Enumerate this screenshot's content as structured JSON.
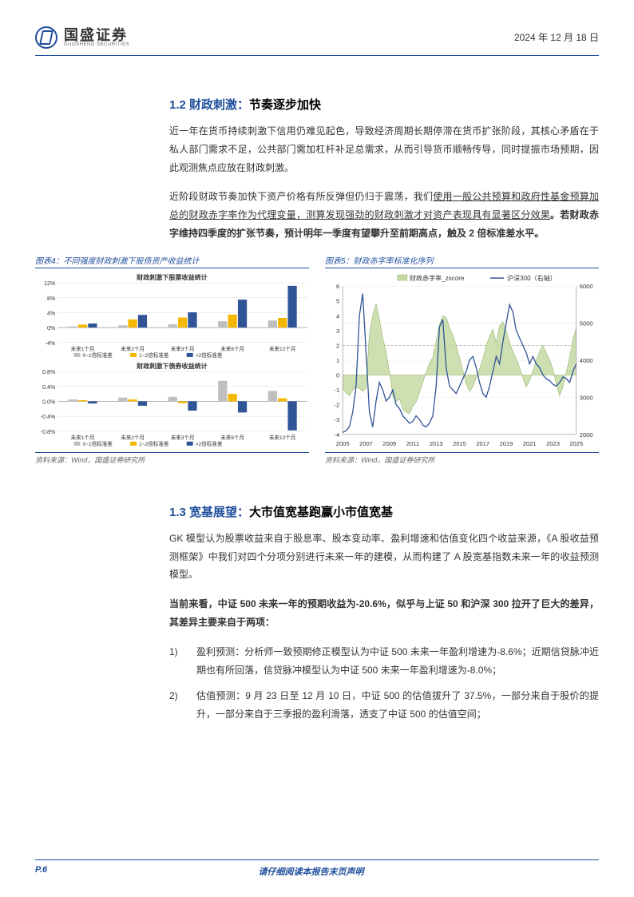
{
  "header": {
    "logo_cn": "国盛证券",
    "logo_en": "GUOSHENG SECURITIES",
    "date": "2024 年 12 月 18 日"
  },
  "section_1_2": {
    "heading_num": "1.2",
    "heading_colored": "财政刺激：",
    "heading_black": "节奏逐步加快",
    "para1": "近一年在货币持续刺激下信用仍难见起色，导致经济周期长期停滞在货币扩张阶段，其核心矛盾在于私人部门需求不足，公共部门需加杠杆补足总需求，从而引导货币顺畅传导，同时提振市场预期，因此观测焦点应放在财政刺激。",
    "para2_a": "近阶段财政节奏加快下资产价格有所反弹但仍归于震荡，我们",
    "para2_u": "使用一般公共预算和政府性基金预算加总的财政赤字率作为代理变量，测算发现强劲的财政刺激才对资产表现具有显著区分效果",
    "para2_b": "。若财政赤字维持四季度的扩张节奏，预计明年一季度有望攀升至前期高点，触及 2 倍标准差水平。"
  },
  "chart4": {
    "title": "图表4：不同强度财政刺激下股债资产收益统计",
    "source": "资料来源：Wind，国盛证券研究所",
    "sub1_title": "财政刺激下股票收益统计",
    "sub2_title": "财政刺激下债券收益统计",
    "categories": [
      "未来1个月",
      "未来2个月",
      "未来3个月",
      "未来6个月",
      "未来12个月"
    ],
    "legend": [
      "0~1倍标准差",
      "1~2倍标准差",
      ">2倍标准差"
    ],
    "colors": [
      "#bfbfbf",
      "#f5b800",
      "#2f5597"
    ],
    "sub1": {
      "yticks": [
        -4,
        0,
        4,
        8,
        12
      ],
      "ylim": [
        -4,
        12
      ],
      "data": [
        [
          0.3,
          0.8,
          1.1
        ],
        [
          0.6,
          2.2,
          3.4
        ],
        [
          0.9,
          2.7,
          4.1
        ],
        [
          1.7,
          3.5,
          7.5
        ],
        [
          1.9,
          2.6,
          11.2
        ]
      ]
    },
    "sub2": {
      "yticks": [
        -0.8,
        -0.4,
        0.0,
        0.4,
        0.8
      ],
      "yticks_labels": [
        "-0.8%",
        "-0.4%",
        "0.0%",
        "0.4%",
        "0.8%"
      ],
      "ylim": [
        -0.8,
        0.8
      ],
      "data": [
        [
          0.05,
          0.03,
          -0.06
        ],
        [
          0.1,
          0.05,
          -0.12
        ],
        [
          0.12,
          -0.05,
          -0.25
        ],
        [
          0.55,
          0.2,
          -0.3
        ],
        [
          0.28,
          0.08,
          -0.78
        ]
      ]
    }
  },
  "chart5": {
    "title": "图表5：财政赤字率标准化序列",
    "source": "资料来源：Wind，国盛证券研究所",
    "legend": [
      "财政赤字率_zscore",
      "沪深300（右轴）"
    ],
    "colors": {
      "area": "#c5d9a5",
      "area_stroke": "#8aab5b",
      "line": "#2f5597"
    },
    "left_ticks": [
      -4,
      -3,
      -2,
      -1,
      0,
      1,
      2,
      3,
      4,
      5,
      6
    ],
    "right_ticks": [
      2000,
      3000,
      4000,
      5000,
      6000
    ],
    "x_ticks": [
      2005,
      2007,
      2009,
      2011,
      2013,
      2015,
      2017,
      2019,
      2021,
      2023,
      2025
    ],
    "zscore_series": [
      -0.9,
      -1.2,
      -1.4,
      -1.0,
      -0.8,
      -0.9,
      -1.1,
      -0.9,
      2.8,
      4.0,
      4.8,
      3.8,
      2.5,
      1.6,
      0.2,
      -1.4,
      -1.8,
      -1.6,
      -2.3,
      -2.5,
      -2.6,
      -2.1,
      -1.8,
      -1.2,
      -0.5,
      0.2,
      0.8,
      1.2,
      2.3,
      3.4,
      4.0,
      3.9,
      3.2,
      2.7,
      2.0,
      1.2,
      0.3,
      -0.6,
      -1.1,
      -0.8,
      -0.2,
      0.4,
      1.1,
      2.0,
      2.6,
      3.1,
      2.2,
      3.3,
      3.6,
      3.0,
      2.2,
      1.6,
      1.1,
      0.5,
      -0.2,
      -0.8,
      -0.4,
      0.3,
      1.0,
      1.6,
      2.0,
      1.5,
      1.0,
      0.4,
      -0.6,
      -1.4,
      -0.8,
      0.2,
      1.2,
      2.4,
      3.2
    ],
    "csi300_series": [
      2050,
      2100,
      2200,
      2600,
      3300,
      5200,
      5800,
      4200,
      2600,
      2200,
      2900,
      3400,
      3200,
      2900,
      3000,
      3200,
      2800,
      2700,
      2500,
      2400,
      2300,
      2350,
      2500,
      2400,
      2250,
      2200,
      2300,
      2500,
      3300,
      4900,
      5100,
      3800,
      3300,
      3200,
      3100,
      3300,
      3500,
      3700,
      4000,
      4100,
      3800,
      3400,
      3100,
      3000,
      3300,
      3700,
      4100,
      3900,
      4500,
      5000,
      5500,
      5300,
      4800,
      4600,
      4400,
      4200,
      3900,
      4100,
      3900,
      3800,
      3600,
      3500,
      3450,
      3350,
      3300,
      3400,
      3550,
      3500,
      3400,
      3700,
      3900
    ]
  },
  "section_1_3": {
    "heading_num": "1.3",
    "heading_colored": "宽基展望：",
    "heading_black": "大市值宽基跑赢小市值宽基",
    "para1": "GK 模型认为股票收益来自于股息率、股本变动率、盈利增速和估值变化四个收益来源，《A 股收益预测框架》中我们对四个分项分别进行未来一年的建模，从而构建了 A 股宽基指数未来一年的收益预测模型。",
    "para2": "当前来看，中证 500 未来一年的预期收益为-20.6%，似乎与上证 50 和沪深 300 拉开了巨大的差异，其差异主要来自于两项：",
    "item1": "盈利预测：分析师一致预期修正模型认为中证 500 未来一年盈利增速为-8.6%；近期信贷脉冲近期也有所回落，信贷脉冲模型认为中证 500 未来一年盈利增速为-8.0%；",
    "item2": "估值预测：9 月 23 日至 12 月 10 日，中证 500 的估值拔升了 37.5%，一部分来自于股价的提升，一部分来自于三季报的盈利滑落，透支了中证 500 的估值空间；"
  },
  "footer": {
    "page": "P.6",
    "notice": "请仔细阅读本报告末页声明"
  }
}
